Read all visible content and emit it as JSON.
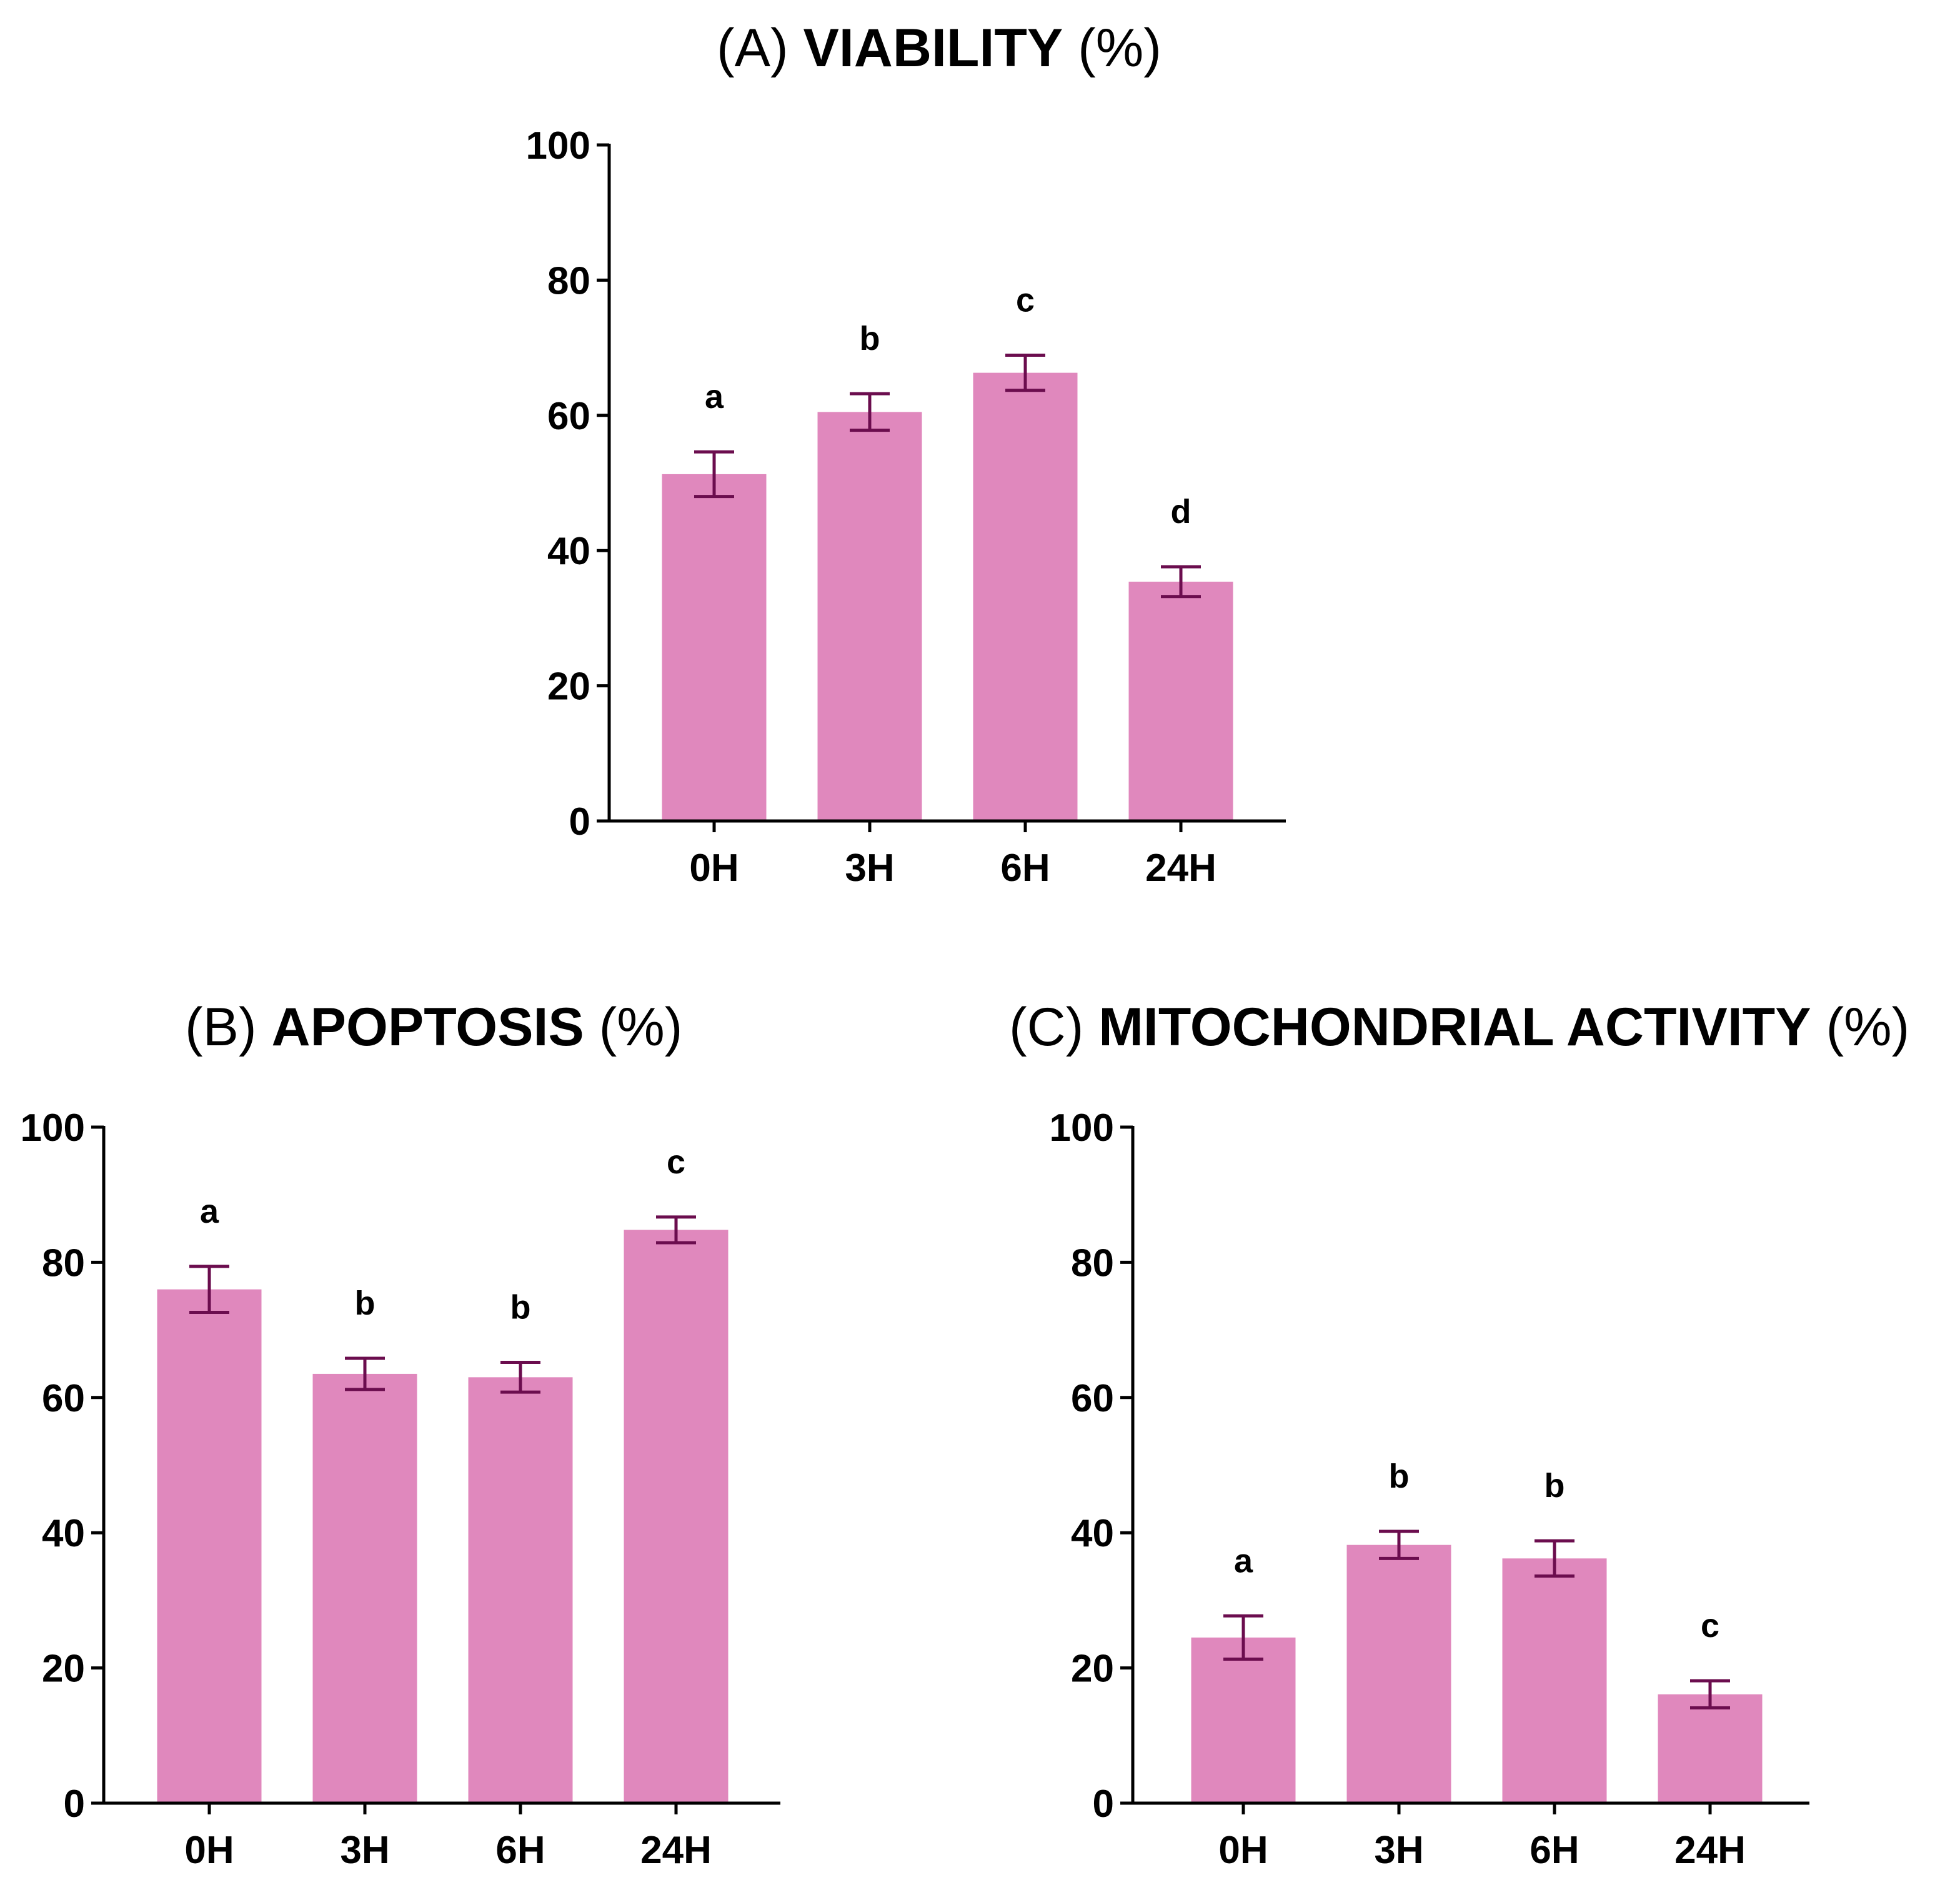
{
  "colors": {
    "bar": "#E088BD",
    "error": "#6B0D4E",
    "axis": "#000000"
  },
  "chart_data": [
    {
      "id": "A",
      "type": "bar",
      "title_prefix": "(A) ",
      "title_bold": "VIABILITY",
      "title_suffix": " (%)",
      "categories": [
        "0H",
        "3H",
        "6H",
        "24H"
      ],
      "values": [
        51.3,
        60.5,
        66.3,
        35.4
      ],
      "errors": [
        3.3,
        2.7,
        2.6,
        2.2
      ],
      "letters": [
        "a",
        "b",
        "c",
        "d"
      ],
      "ylim": [
        0,
        100
      ],
      "yticks": [
        "0",
        "20",
        "40",
        "60",
        "80",
        "100"
      ],
      "xlabel": "",
      "ylabel": ""
    },
    {
      "id": "B",
      "type": "bar",
      "title_prefix": "(B) ",
      "title_bold": "APOPTOSIS",
      "title_suffix": " (%)",
      "categories": [
        "0H",
        "3H",
        "6H",
        "24H"
      ],
      "values": [
        76.0,
        63.5,
        63.0,
        84.8
      ],
      "errors": [
        3.4,
        2.3,
        2.2,
        1.9
      ],
      "letters": [
        "a",
        "b",
        "b",
        "c"
      ],
      "ylim": [
        0,
        100
      ],
      "yticks": [
        "0",
        "20",
        "40",
        "60",
        "80",
        "100"
      ],
      "xlabel": "",
      "ylabel": ""
    },
    {
      "id": "C",
      "type": "bar",
      "title_prefix": "(C) ",
      "title_bold": "MITOCHONDRIAL ACTIVITY",
      "title_suffix": " (%)",
      "categories": [
        "0H",
        "3H",
        "6H",
        "24H"
      ],
      "values": [
        24.5,
        38.2,
        36.2,
        16.1
      ],
      "errors": [
        3.2,
        2.0,
        2.6,
        2.0
      ],
      "letters": [
        "a",
        "b",
        "b",
        "c"
      ],
      "ylim": [
        0,
        100
      ],
      "yticks": [
        "0",
        "20",
        "40",
        "60",
        "80",
        "100"
      ],
      "xlabel": "",
      "ylabel": ""
    }
  ]
}
